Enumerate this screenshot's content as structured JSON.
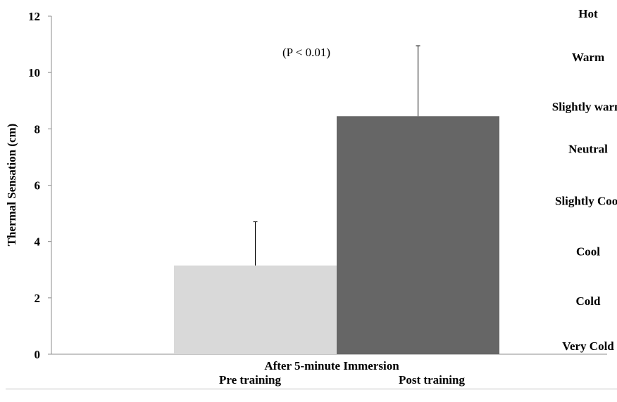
{
  "chart_data": {
    "type": "bar",
    "title": "",
    "xlabel": "After 5-minute Immersion",
    "ylabel": "Thermal Sensation (cm)",
    "ylim": [
      0,
      12
    ],
    "yticks": [
      0,
      2,
      4,
      6,
      8,
      10,
      12
    ],
    "categories": [
      "Pre training",
      "Post training"
    ],
    "values": [
      3.15,
      8.45
    ],
    "errors_upper": [
      1.55,
      2.5
    ],
    "colors": [
      "#d9d9d9",
      "#666666"
    ],
    "annotation": "(P < 0.01)",
    "scale_labels": [
      {
        "label": "Hot",
        "value": 12.1
      },
      {
        "label": "Warm",
        "value": 10.55
      },
      {
        "label": "Slightly warm",
        "value": 8.8
      },
      {
        "label": "Neutral",
        "value": 7.3
      },
      {
        "label": "Slightly Cool",
        "value": 5.45
      },
      {
        "label": "Cool",
        "value": 3.65
      },
      {
        "label": "Cold",
        "value": 1.9
      },
      {
        "label": "Very Cold",
        "value": 0.3
      }
    ],
    "grid": false,
    "legend": "none"
  }
}
